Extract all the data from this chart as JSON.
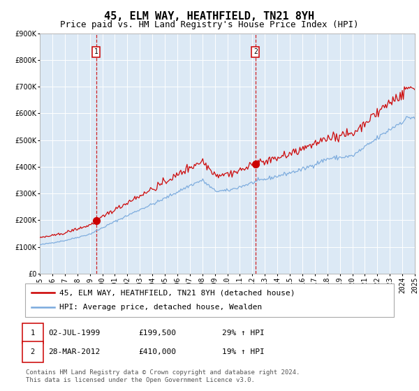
{
  "title": "45, ELM WAY, HEATHFIELD, TN21 8YH",
  "subtitle": "Price paid vs. HM Land Registry's House Price Index (HPI)",
  "hpi_label": "HPI: Average price, detached house, Wealden",
  "price_label": "45, ELM WAY, HEATHFIELD, TN21 8YH (detached house)",
  "footer": "Contains HM Land Registry data © Crown copyright and database right 2024.\nThis data is licensed under the Open Government Licence v3.0.",
  "sale1": {
    "date": "02-JUL-1999",
    "price": 199500,
    "label": "1",
    "pct": "29% ↑ HPI",
    "year_x": 1999.5
  },
  "sale2": {
    "date": "28-MAR-2012",
    "price": 410000,
    "label": "2",
    "pct": "19% ↑ HPI",
    "year_x": 2012.25
  },
  "ylim": [
    0,
    900000
  ],
  "xlim_start": 1995,
  "xlim_end": 2025,
  "bg_color": "#dce9f5",
  "grid_color": "#ffffff",
  "red_line_color": "#cc0000",
  "blue_line_color": "#7aaadd",
  "dashed_line_color": "#cc0000",
  "sale_marker_color": "#cc0000",
  "title_fontsize": 11,
  "subtitle_fontsize": 9,
  "tick_fontsize": 7,
  "legend_fontsize": 8,
  "footer_fontsize": 6.5
}
